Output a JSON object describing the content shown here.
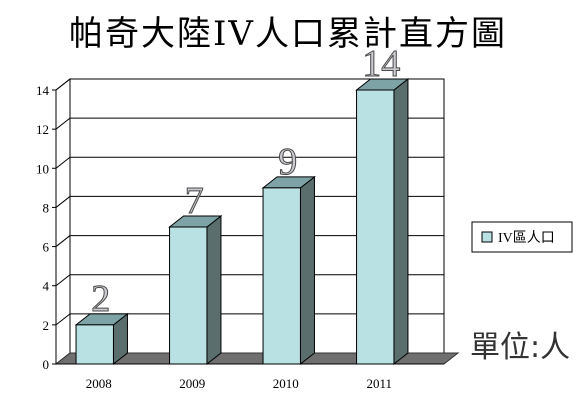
{
  "page": {
    "title": "帕奇大陸IV人口累計直方圖",
    "unit_label": "單位:人"
  },
  "colors": {
    "bar_front": "#b9e0e3",
    "bar_side": "#5a6e6e",
    "bar_top": "#7ea3a6",
    "floor": "#6f6f6f",
    "grid": "#000000",
    "wall": "#ffffff"
  },
  "chart_data": {
    "type": "bar",
    "title": "帕奇大陸IV人口累計直方圖",
    "categories": [
      "2008",
      "2009",
      "2010",
      "2011"
    ],
    "series": [
      {
        "name": "IV區人口",
        "values": [
          2,
          7,
          9,
          14
        ]
      }
    ],
    "ylim": [
      0,
      14
    ],
    "yticks": [
      0,
      2,
      4,
      6,
      8,
      10,
      12,
      14
    ],
    "grid": true,
    "legend_position": "right",
    "data_labels": [
      "2",
      "7",
      "9",
      "14"
    ]
  }
}
